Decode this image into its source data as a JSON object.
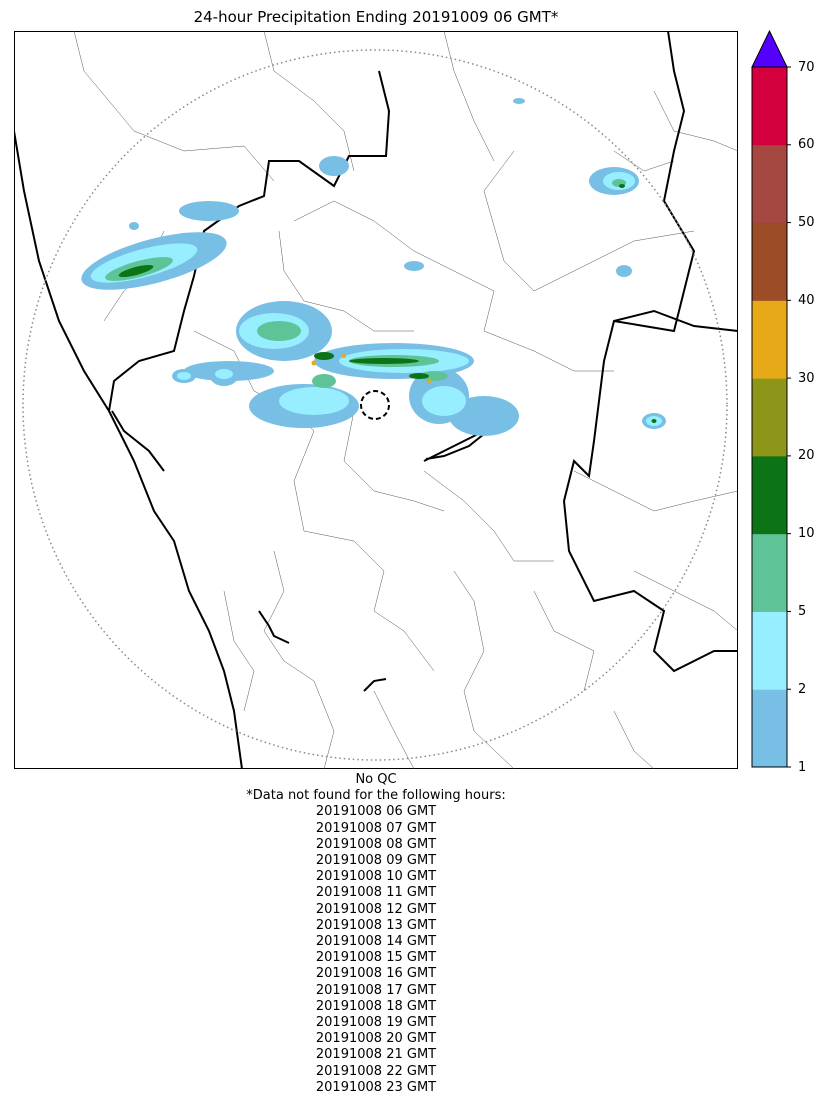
{
  "title": "24-hour Precipitation Ending 20191009 06 GMT*",
  "colorbar": {
    "ticks": [
      "1",
      "2",
      "5",
      "10",
      "20",
      "30",
      "40",
      "50",
      "60",
      "70"
    ],
    "levels": [
      1,
      2,
      5,
      10,
      20,
      30,
      40,
      50,
      60,
      70
    ],
    "colors": [
      "#78bfe6",
      "#96eeff",
      "#5ec497",
      "#0d7317",
      "#8d9618",
      "#e6aa18",
      "#9a4d26",
      "#a44841",
      "#d4003e"
    ],
    "over_color": "#5500ff",
    "extend": "max"
  },
  "map_colors": {
    "range_ring": "#888888",
    "state_border": "#000000",
    "district_border": "#555555"
  },
  "footnote": {
    "qc": "No QC",
    "note": "*Data not found for the following hours:",
    "hours": [
      "20191008 06 GMT",
      "20191008 07 GMT",
      "20191008 08 GMT",
      "20191008 09 GMT",
      "20191008 10 GMT",
      "20191008 11 GMT",
      "20191008 12 GMT",
      "20191008 13 GMT",
      "20191008 14 GMT",
      "20191008 15 GMT",
      "20191008 16 GMT",
      "20191008 17 GMT",
      "20191008 18 GMT",
      "20191008 19 GMT",
      "20191008 20 GMT",
      "20191008 21 GMT",
      "20191008 22 GMT",
      "20191008 23 GMT"
    ]
  }
}
